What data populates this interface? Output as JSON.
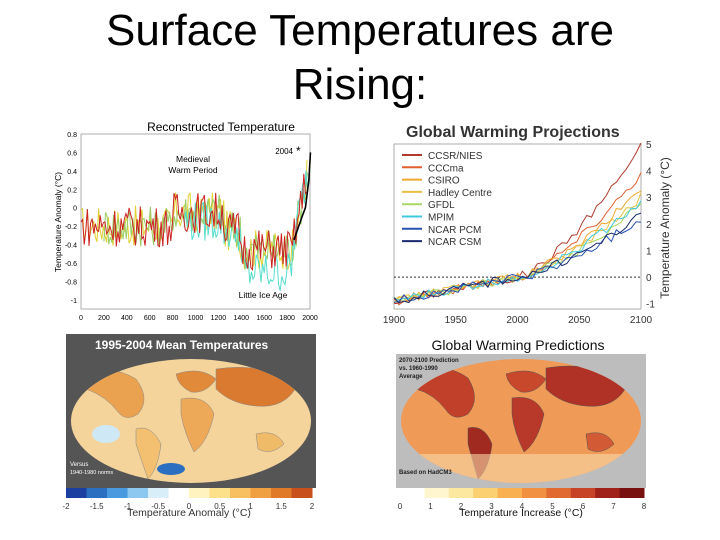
{
  "slide": {
    "title_line1": "Surface Temperatures are",
    "title_line2": "Rising:"
  },
  "chart_data": [
    {
      "id": "reconstructed",
      "type": "line",
      "title": "Reconstructed Temperature",
      "xlabel": "",
      "ylabel": "Temperature Anomaly (°C)",
      "xlim": [
        0,
        2000
      ],
      "ylim": [
        -1.1,
        0.8
      ],
      "xticks": [
        "0",
        "200",
        "400",
        "600",
        "800",
        "1000",
        "1200",
        "1400",
        "1600",
        "1800",
        "2000"
      ],
      "yticks": [
        "0.8",
        "0.6",
        "0.4",
        "0.2",
        "0",
        "-0.2",
        "-0.4",
        "-0.6",
        "-0.8",
        "-1"
      ],
      "annotations": {
        "medieval1": "Medieval",
        "medieval2": "Warm Period",
        "little_ice_age": "Little Ice Age",
        "marker_2004": "2004"
      },
      "colors": {
        "red": "#cc2222",
        "yellow": "#e0d030",
        "cyan": "#55ddcc",
        "green": "#99cc66",
        "black": "#000000"
      }
    },
    {
      "id": "projections",
      "type": "line",
      "title": "Global Warming Projections",
      "xlabel": "",
      "ylabel": "Temperature Anomaly (°C)",
      "xlim": [
        1900,
        2100
      ],
      "ylim": [
        -1.2,
        5.0
      ],
      "xticks": [
        "1900",
        "1950",
        "2000",
        "2050",
        "2100"
      ],
      "yticks": [
        "5",
        "4",
        "3",
        "2",
        "1",
        "0",
        "-1"
      ],
      "series": [
        {
          "name": "CCSR/NIES",
          "color": "#b03a2e",
          "end": 4.9
        },
        {
          "name": "CCCma",
          "color": "#e06030",
          "end": 3.9
        },
        {
          "name": "CSIRO",
          "color": "#f0a830",
          "end": 3.3
        },
        {
          "name": "Hadley Centre",
          "color": "#e8c040",
          "end": 3.0
        },
        {
          "name": "GFDL",
          "color": "#a8d860",
          "end": 2.7
        },
        {
          "name": "MPIM",
          "color": "#40c8e0",
          "end": 2.9
        },
        {
          "name": "NCAR PCM",
          "color": "#2850b0",
          "end": 2.2
        },
        {
          "name": "NCAR CSM",
          "color": "#1a2a70",
          "end": 2.3
        }
      ]
    },
    {
      "id": "mean_temps",
      "type": "heatmap",
      "title": "1995-2004 Mean Temperatures",
      "inset_text1": "Versus",
      "inset_text2": "1940-1980 norms",
      "colorbar_label": "Temperature Anomaly (°C)",
      "colorbar_ticks": [
        "-2",
        "-1.5",
        "-1",
        "-0.5",
        "0",
        "0.5",
        "1",
        "1.5",
        "2"
      ]
    },
    {
      "id": "predictions",
      "type": "heatmap",
      "title": "Global Warming Predictions",
      "inset_line1": "2070-2100 Prediction",
      "inset_line2": "vs. 1960-1990",
      "inset_line3": "Average",
      "inset_bottom": "Based on HadCM3",
      "colorbar_label": "Temperature Increase (°C)",
      "colorbar_ticks": [
        "0",
        "1",
        "2",
        "3",
        "4",
        "5",
        "6",
        "7",
        "8"
      ]
    }
  ]
}
